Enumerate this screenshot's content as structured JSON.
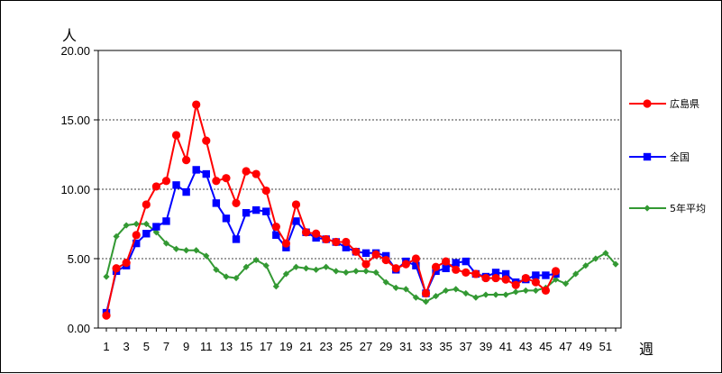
{
  "chart_data": {
    "type": "line",
    "y_unit_label": "人",
    "x_unit_label": "週",
    "ylim": [
      0,
      20
    ],
    "y_ticks": [
      "0.00",
      "5.00",
      "10.00",
      "15.00",
      "20.00"
    ],
    "xlim": [
      1,
      52
    ],
    "x_ticks": [
      "1",
      "3",
      "5",
      "7",
      "9",
      "11",
      "13",
      "15",
      "17",
      "19",
      "21",
      "23",
      "25",
      "27",
      "29",
      "31",
      "33",
      "35",
      "37",
      "39",
      "41",
      "43",
      "45",
      "47",
      "49",
      "51"
    ],
    "grid": "horizontal-dashed",
    "legend_position": "right",
    "series": [
      {
        "name": "広島県",
        "color": "#ff0000",
        "marker": "circle",
        "x": [
          1,
          2,
          3,
          4,
          5,
          6,
          7,
          8,
          9,
          10,
          11,
          12,
          13,
          14,
          15,
          16,
          17,
          18,
          19,
          20,
          21,
          22,
          23,
          24,
          25,
          26,
          27,
          28,
          29,
          30,
          31,
          32,
          33,
          34,
          35,
          36,
          37,
          38,
          39,
          40,
          41,
          42,
          43,
          44,
          45,
          46
        ],
        "values": [
          0.9,
          4.3,
          4.7,
          6.7,
          8.9,
          10.2,
          10.6,
          13.9,
          12.1,
          16.1,
          13.5,
          10.6,
          10.8,
          9.0,
          11.3,
          11.1,
          9.9,
          7.3,
          6.1,
          8.9,
          6.9,
          6.8,
          6.4,
          6.2,
          6.2,
          5.5,
          4.6,
          5.3,
          4.9,
          4.3,
          4.6,
          5.0,
          2.5,
          4.4,
          4.8,
          4.2,
          4.0,
          3.9,
          3.6,
          3.6,
          3.5,
          3.1,
          3.6,
          3.3,
          2.7,
          4.1
        ]
      },
      {
        "name": "全国",
        "color": "#0000ff",
        "marker": "square",
        "x": [
          1,
          2,
          3,
          4,
          5,
          6,
          7,
          8,
          9,
          10,
          11,
          12,
          13,
          14,
          15,
          16,
          17,
          18,
          19,
          20,
          21,
          22,
          23,
          24,
          25,
          26,
          27,
          28,
          29,
          30,
          31,
          32,
          33,
          34,
          35,
          36,
          37,
          38,
          39,
          40,
          41,
          42,
          43,
          44,
          45,
          46
        ],
        "values": [
          1.1,
          4.1,
          4.5,
          6.1,
          6.8,
          7.3,
          7.7,
          10.3,
          9.8,
          11.4,
          11.1,
          9.0,
          7.9,
          6.4,
          8.3,
          8.5,
          8.4,
          6.7,
          5.8,
          7.7,
          6.9,
          6.5,
          6.4,
          6.2,
          5.8,
          5.5,
          5.4,
          5.4,
          5.2,
          4.2,
          4.8,
          4.5,
          2.5,
          4.1,
          4.3,
          4.7,
          4.8,
          3.9,
          3.7,
          4.0,
          3.9,
          3.3,
          3.5,
          3.8,
          3.8,
          3.9
        ]
      },
      {
        "name": "5年平均",
        "color": "#339933",
        "marker": "diamond",
        "x": [
          1,
          2,
          3,
          4,
          5,
          6,
          7,
          8,
          9,
          10,
          11,
          12,
          13,
          14,
          15,
          16,
          17,
          18,
          19,
          20,
          21,
          22,
          23,
          24,
          25,
          26,
          27,
          28,
          29,
          30,
          31,
          32,
          33,
          34,
          35,
          36,
          37,
          38,
          39,
          40,
          41,
          42,
          43,
          44,
          45,
          46,
          47,
          48,
          49,
          50,
          51,
          52
        ],
        "values": [
          3.7,
          6.6,
          7.4,
          7.5,
          7.5,
          6.9,
          6.1,
          5.7,
          5.6,
          5.6,
          5.2,
          4.2,
          3.7,
          3.6,
          4.4,
          4.9,
          4.5,
          3.0,
          3.9,
          4.4,
          4.3,
          4.2,
          4.4,
          4.1,
          4.0,
          4.1,
          4.1,
          4.0,
          3.3,
          2.9,
          2.8,
          2.2,
          1.9,
          2.3,
          2.7,
          2.8,
          2.5,
          2.2,
          2.4,
          2.4,
          2.4,
          2.6,
          2.7,
          2.7,
          2.9,
          3.5,
          3.2,
          3.9,
          4.5,
          5.0,
          5.4,
          4.6
        ]
      }
    ]
  }
}
